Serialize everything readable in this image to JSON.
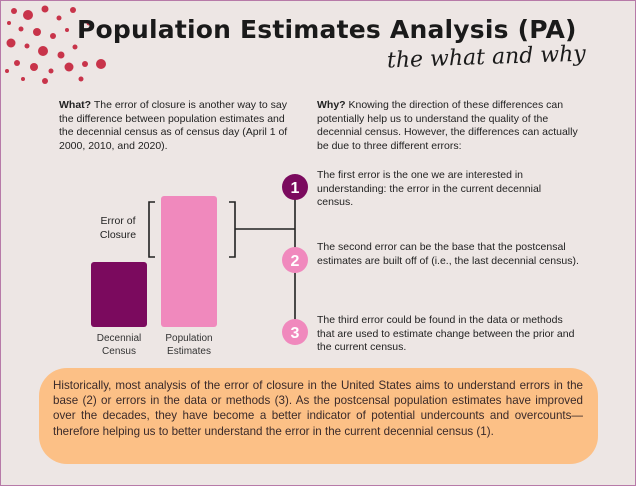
{
  "title": "Population Estimates Analysis (PA)",
  "subtitle": "the what and why",
  "what": {
    "heading": "What?",
    "text": "The error of closure is another way to say the difference between population estimates and the decennial census as of census day (April 1 of 2000, 2010, and 2020)."
  },
  "why": {
    "heading": "Why?",
    "text": "Knowing the direction of these differences can potentially help us to understand the quality of the decennial census. However, the differences can actually be due to three different errors:"
  },
  "chart": {
    "error_label_line1": "Error of",
    "error_label_line2": "Closure",
    "bars": [
      {
        "label_line1": "Decennial",
        "label_line2": "Census",
        "color": "#7b0a5e"
      },
      {
        "label_line1": "Population",
        "label_line2": "Estimates",
        "color": "#f089bd"
      }
    ]
  },
  "errors": [
    {
      "number": "1",
      "color": "#7b0a5e",
      "text": "The first error is the one we are interested in understanding: the error in the current decennial census."
    },
    {
      "number": "2",
      "color": "#f089bd",
      "text": "The second error can be the base that the postcensal estimates are built off of (i.e., the last decennial census)."
    },
    {
      "number": "3",
      "color": "#f089bd",
      "text": "The third error could be found in the data or methods that are used to estimate change between the prior and the current census."
    }
  ],
  "callout": {
    "text": "Historically, most analysis of the error of closure in the United States aims to understand errors in the base (2) or errors in the data or methods (3). As the postcensal population estimates have improved over the decades, they have become a better indicator of potential undercounts and overcounts—therefore helping us to better understand the error in the current decennial census (1).",
    "color": "#fcc086"
  },
  "colors": {
    "accent_dark": "#7b0a5e",
    "accent_pink": "#f089bd",
    "dots": "#c8344a",
    "background": "#ede6e4"
  }
}
